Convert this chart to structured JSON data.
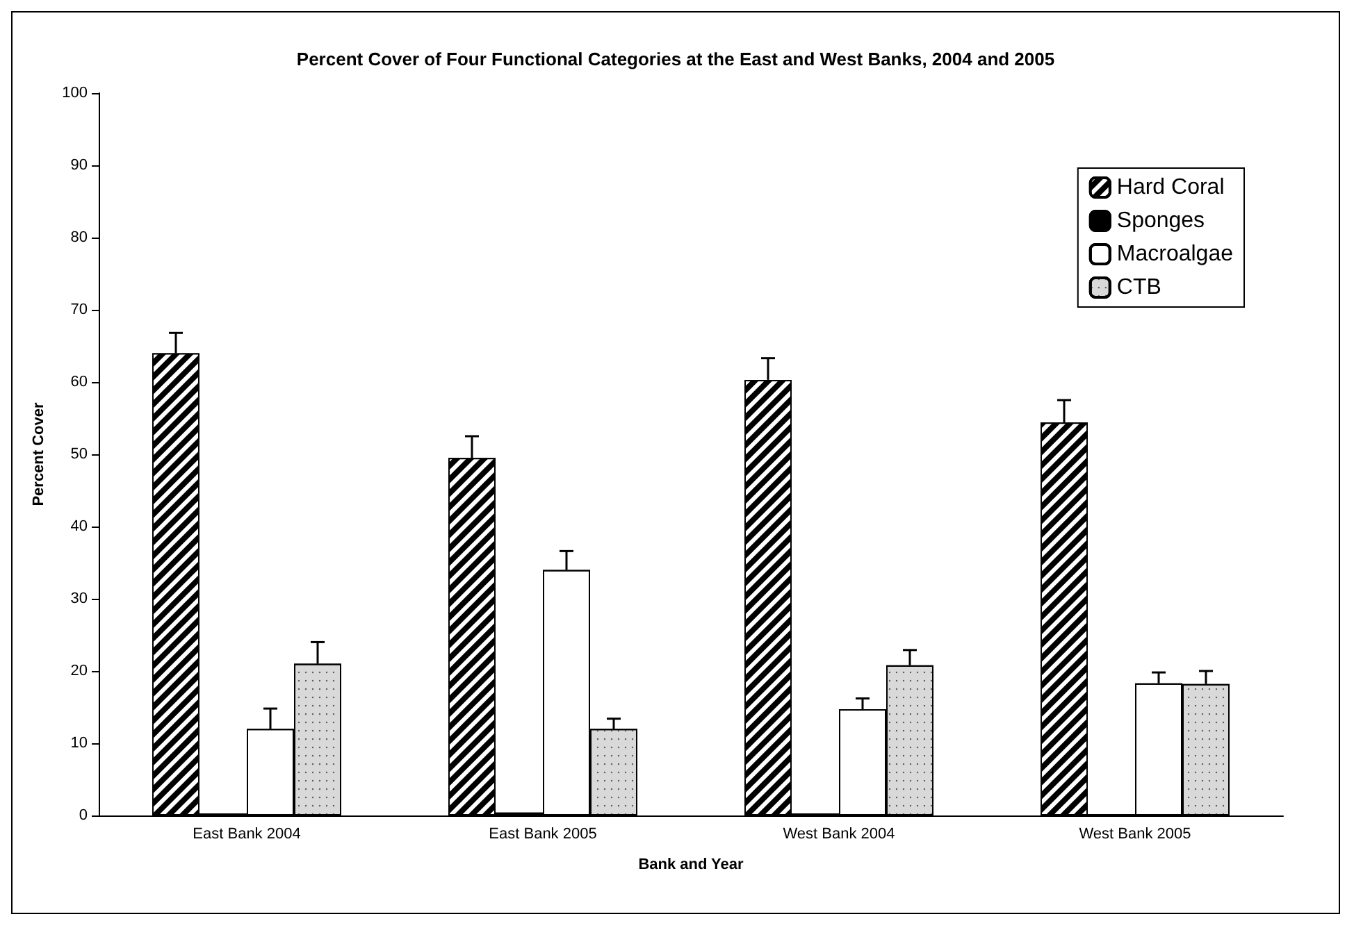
{
  "chart_data": {
    "type": "bar",
    "title": "Percent Cover of Four Functional Categories at the East and West Banks, 2004 and 2005",
    "xlabel": "Bank and Year",
    "ylabel": "Percent Cover",
    "categories": [
      "East Bank 2004",
      "East Bank 2005",
      "West Bank 2004",
      "West Bank 2005"
    ],
    "series": [
      {
        "name": "Hard Coral",
        "color": "#000000",
        "values": [
          64,
          49.5,
          60.3,
          54.4
        ],
        "errors": [
          2.8,
          3,
          3,
          3.1
        ]
      },
      {
        "name": "Sponges",
        "color": "#000000",
        "values": [
          0.3,
          0.4,
          0.3,
          0.2
        ],
        "errors": [
          null,
          null,
          null,
          null
        ]
      },
      {
        "name": "Macroalgae",
        "color": "#ffffff",
        "values": [
          12,
          34,
          14.7,
          18.3
        ],
        "errors": [
          2.8,
          2.6,
          1.5,
          1.5
        ]
      },
      {
        "name": "CTB",
        "color": "#d9d9d9",
        "values": [
          21,
          12,
          20.8,
          18.2
        ],
        "errors": [
          3,
          1.4,
          2.1,
          1.8
        ]
      }
    ],
    "ylim": [
      0,
      100
    ],
    "yticks": [
      0,
      10,
      20,
      30,
      40,
      50,
      60,
      70,
      80,
      90,
      100
    ],
    "grid": false,
    "legend": "top right"
  }
}
